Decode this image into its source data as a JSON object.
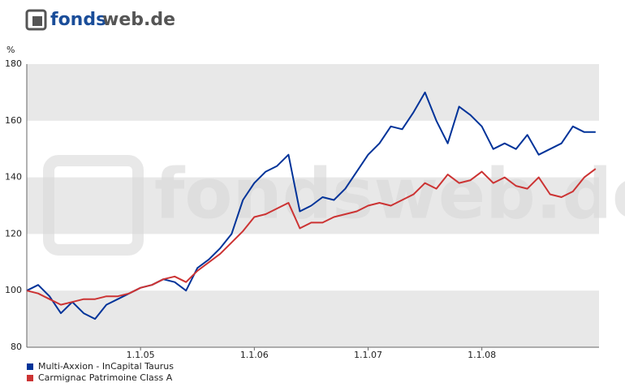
{
  "logo_prefix": "fonds",
  "logo_suffix": "web.de",
  "watermark": "fondsweb.de",
  "chart_data": {
    "type": "line",
    "y_label": "%",
    "x": [
      2004.0,
      2004.1,
      2004.2,
      2004.3,
      2004.4,
      2004.5,
      2004.6,
      2004.7,
      2004.8,
      2004.9,
      2005.0,
      2005.1,
      2005.2,
      2005.3,
      2005.4,
      2005.5,
      2005.6,
      2005.7,
      2005.8,
      2005.9,
      2006.0,
      2006.1,
      2006.2,
      2006.3,
      2006.4,
      2006.5,
      2006.6,
      2006.7,
      2006.8,
      2006.9,
      2007.0,
      2007.1,
      2007.2,
      2007.3,
      2007.4,
      2007.5,
      2007.6,
      2007.7,
      2007.8,
      2007.9,
      2008.0,
      2008.1,
      2008.2,
      2008.3,
      2008.4,
      2008.5,
      2008.6,
      2008.7,
      2008.8,
      2008.9,
      2009.0
    ],
    "series": [
      {
        "name": "Multi-Axxion - InCapital Taurus",
        "color": "#003399",
        "values": [
          100,
          102,
          98,
          92,
          96,
          92,
          90,
          95,
          97,
          99,
          101,
          102,
          104,
          103,
          100,
          108,
          111,
          115,
          120,
          132,
          138,
          142,
          144,
          148,
          128,
          130,
          133,
          132,
          136,
          142,
          148,
          152,
          158,
          157,
          163,
          170,
          160,
          152,
          165,
          162,
          158,
          150,
          152,
          150,
          155,
          148,
          150,
          152,
          158,
          156,
          156
        ]
      },
      {
        "name": "Carmignac Patrimoine Class A",
        "color": "#cc3333",
        "values": [
          100,
          99,
          97,
          95,
          96,
          97,
          97,
          98,
          98,
          99,
          101,
          102,
          104,
          105,
          103,
          107,
          110,
          113,
          117,
          121,
          126,
          127,
          129,
          131,
          122,
          124,
          124,
          126,
          127,
          128,
          130,
          131,
          130,
          132,
          134,
          138,
          136,
          141,
          138,
          139,
          142,
          138,
          140,
          137,
          136,
          140,
          134,
          133,
          135,
          140,
          143
        ]
      }
    ],
    "xlim": [
      2004.0,
      2009.03
    ],
    "xticks": [
      {
        "value": 2005,
        "label": "1.1.05"
      },
      {
        "value": 2006,
        "label": "1.1.06"
      },
      {
        "value": 2007,
        "label": "1.1.07"
      },
      {
        "value": 2008,
        "label": "1.1.08"
      }
    ],
    "ylim": [
      80,
      180
    ],
    "yticks": [
      80,
      100,
      120,
      140,
      160,
      180
    ],
    "grid": "bands",
    "band_color": "#e8e8e8",
    "legend": "bottom-left"
  }
}
